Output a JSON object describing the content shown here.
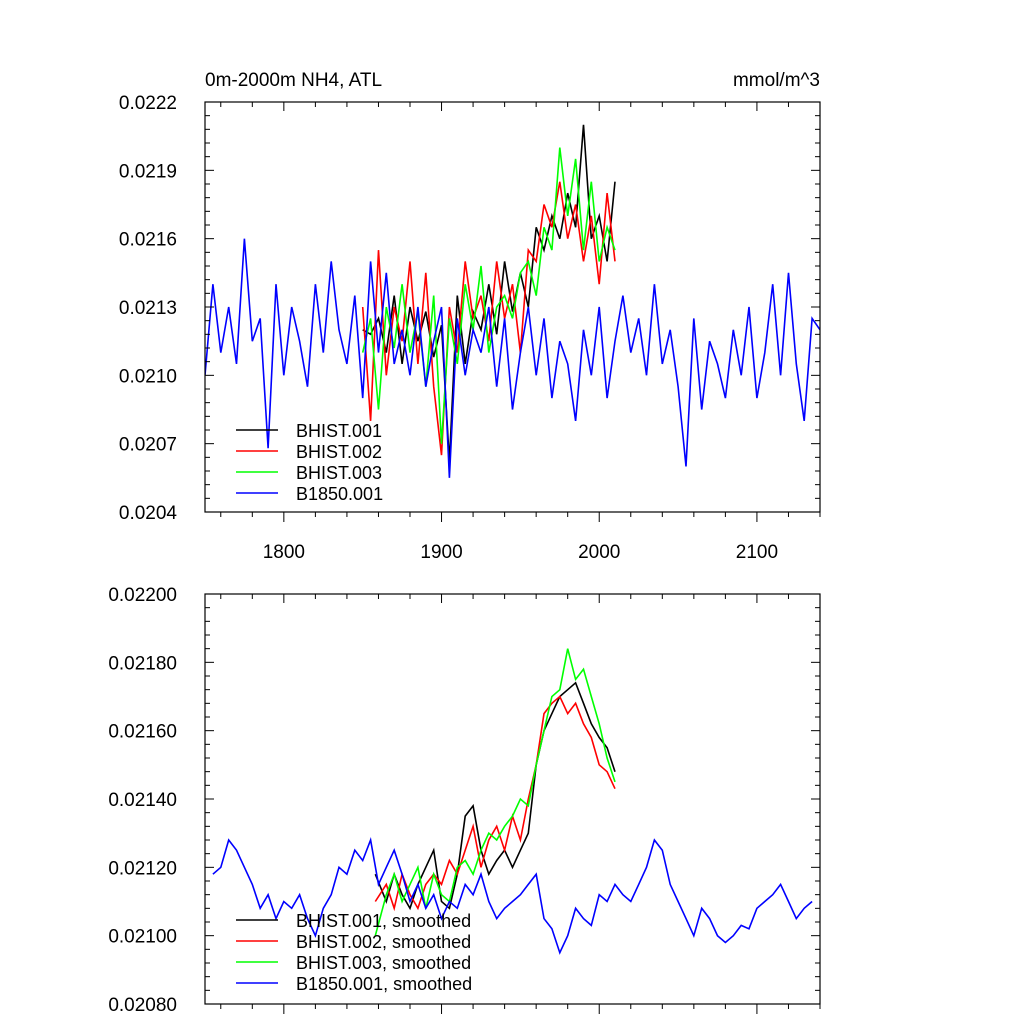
{
  "figure": {
    "title_left": "0m-2000m NH4, ATL",
    "title_right": "mmol/m^3"
  },
  "colors": {
    "BHIST.001": "#000000",
    "BHIST.002": "#ff0000",
    "BHIST.003": "#00ff00",
    "B1850.001": "#0000ff"
  },
  "chart_data": [
    {
      "type": "line",
      "title": "0m-2000m NH4, ATL",
      "units": "mmol/m^3",
      "xlim": [
        1750,
        2140
      ],
      "ylim": [
        0.0204,
        0.0222
      ],
      "xticks": [
        1800,
        1900,
        2000,
        2100
      ],
      "xtick_labels": [
        "1800",
        "1900",
        "2000",
        "2100"
      ],
      "yticks": [
        0.0204,
        0.0207,
        0.021,
        0.0213,
        0.0216,
        0.0219,
        0.0222
      ],
      "ytick_labels": [
        "0.0204",
        "0.0207",
        "0.0210",
        "0.0213",
        "0.0216",
        "0.0219",
        "0.0222"
      ],
      "legend_position": "bottom-left",
      "series": [
        {
          "name": "BHIST.001",
          "color": "#000000",
          "x": [
            1850,
            1855,
            1860,
            1865,
            1870,
            1875,
            1880,
            1885,
            1890,
            1895,
            1900,
            1905,
            1910,
            1915,
            1920,
            1925,
            1930,
            1935,
            1940,
            1945,
            1950,
            1955,
            1960,
            1965,
            1970,
            1975,
            1980,
            1985,
            1990,
            1995,
            2000,
            2005,
            2010
          ],
          "y": [
            0.0212,
            0.02118,
            0.02125,
            0.0211,
            0.02135,
            0.02105,
            0.0213,
            0.02115,
            0.02128,
            0.02108,
            0.02122,
            0.02062,
            0.02135,
            0.02105,
            0.02128,
            0.0212,
            0.0214,
            0.02118,
            0.0215,
            0.02128,
            0.02145,
            0.0213,
            0.02165,
            0.02155,
            0.0217,
            0.0216,
            0.0218,
            0.02165,
            0.0221,
            0.0216,
            0.0217,
            0.0215,
            0.02185
          ]
        },
        {
          "name": "BHIST.002",
          "color": "#ff0000",
          "x": [
            1850,
            1855,
            1860,
            1865,
            1870,
            1875,
            1880,
            1885,
            1890,
            1895,
            1900,
            1905,
            1910,
            1915,
            1920,
            1925,
            1930,
            1935,
            1940,
            1945,
            1950,
            1955,
            1960,
            1965,
            1970,
            1975,
            1980,
            1985,
            1990,
            1995,
            2000,
            2005,
            2010
          ],
          "y": [
            0.0213,
            0.0208,
            0.02155,
            0.021,
            0.0213,
            0.02115,
            0.0215,
            0.02105,
            0.02145,
            0.02095,
            0.02065,
            0.0213,
            0.0211,
            0.0215,
            0.02125,
            0.02135,
            0.02115,
            0.0215,
            0.02125,
            0.0214,
            0.0211,
            0.02155,
            0.0215,
            0.02175,
            0.02165,
            0.02185,
            0.0216,
            0.02175,
            0.0215,
            0.0217,
            0.0214,
            0.0218,
            0.0215
          ]
        },
        {
          "name": "BHIST.003",
          "color": "#00ff00",
          "x": [
            1850,
            1855,
            1860,
            1865,
            1870,
            1875,
            1880,
            1885,
            1890,
            1895,
            1900,
            1905,
            1910,
            1915,
            1920,
            1925,
            1930,
            1935,
            1940,
            1945,
            1950,
            1955,
            1960,
            1965,
            1970,
            1975,
            1980,
            1985,
            1990,
            1995,
            2000,
            2005,
            2010
          ],
          "y": [
            0.0211,
            0.02125,
            0.02085,
            0.0213,
            0.02112,
            0.0214,
            0.0211,
            0.02128,
            0.02095,
            0.02135,
            0.0207,
            0.02125,
            0.02105,
            0.0214,
            0.0212,
            0.02148,
            0.0211,
            0.0213,
            0.02135,
            0.02125,
            0.02145,
            0.0215,
            0.02135,
            0.02165,
            0.02155,
            0.022,
            0.0217,
            0.02195,
            0.02155,
            0.02185,
            0.0215,
            0.02165,
            0.02155
          ]
        },
        {
          "name": "B1850.001",
          "color": "#0000ff",
          "x": [
            1750,
            1755,
            1760,
            1765,
            1770,
            1775,
            1780,
            1785,
            1790,
            1795,
            1800,
            1805,
            1810,
            1815,
            1820,
            1825,
            1830,
            1835,
            1840,
            1845,
            1850,
            1855,
            1860,
            1865,
            1870,
            1875,
            1880,
            1885,
            1890,
            1895,
            1900,
            1905,
            1910,
            1915,
            1920,
            1925,
            1930,
            1935,
            1940,
            1945,
            1950,
            1955,
            1960,
            1965,
            1970,
            1975,
            1980,
            1985,
            1990,
            1995,
            2000,
            2005,
            2010,
            2015,
            2020,
            2025,
            2030,
            2035,
            2040,
            2045,
            2050,
            2055,
            2060,
            2065,
            2070,
            2075,
            2080,
            2085,
            2090,
            2095,
            2100,
            2105,
            2110,
            2115,
            2120,
            2125,
            2130,
            2135,
            2140
          ],
          "y": [
            0.021,
            0.0214,
            0.0211,
            0.0213,
            0.02105,
            0.0216,
            0.02115,
            0.02125,
            0.02068,
            0.0214,
            0.021,
            0.0213,
            0.02115,
            0.02095,
            0.0214,
            0.0211,
            0.0215,
            0.0212,
            0.02105,
            0.02135,
            0.0209,
            0.0215,
            0.0211,
            0.02145,
            0.02105,
            0.0212,
            0.021,
            0.0213,
            0.02095,
            0.02115,
            0.0213,
            0.02055,
            0.02125,
            0.021,
            0.0212,
            0.0211,
            0.0213,
            0.02095,
            0.02125,
            0.02085,
            0.0211,
            0.0213,
            0.021,
            0.02125,
            0.0209,
            0.02115,
            0.02105,
            0.0208,
            0.0212,
            0.021,
            0.0213,
            0.0209,
            0.02115,
            0.02135,
            0.0211,
            0.02125,
            0.021,
            0.0214,
            0.02105,
            0.0212,
            0.02095,
            0.0206,
            0.02125,
            0.02085,
            0.02115,
            0.02105,
            0.0209,
            0.0212,
            0.021,
            0.0213,
            0.0209,
            0.0211,
            0.0214,
            0.021,
            0.02145,
            0.02105,
            0.0208,
            0.02125,
            0.0212
          ]
        }
      ]
    },
    {
      "type": "line",
      "xlim": [
        1750,
        2140
      ],
      "ylim": [
        0.0208,
        0.022
      ],
      "xticks": [
        1800,
        1900,
        2000,
        2100
      ],
      "yticks": [
        0.0208,
        0.021,
        0.0212,
        0.0214,
        0.0216,
        0.0218,
        0.022
      ],
      "ytick_labels": [
        "0.02080",
        "0.02100",
        "0.02120",
        "0.02140",
        "0.02160",
        "0.02180",
        "0.02200"
      ],
      "legend_position": "bottom-left",
      "series": [
        {
          "name": "BHIST.001, smoothed",
          "color": "#000000",
          "x": [
            1858,
            1865,
            1870,
            1875,
            1880,
            1885,
            1890,
            1895,
            1900,
            1905,
            1910,
            1915,
            1920,
            1925,
            1930,
            1935,
            1940,
            1945,
            1950,
            1955,
            1960,
            1965,
            1970,
            1975,
            1980,
            1985,
            1990,
            1995,
            2000,
            2005,
            2010
          ],
          "y": [
            0.02118,
            0.0211,
            0.02118,
            0.02112,
            0.02108,
            0.02115,
            0.0212,
            0.02125,
            0.0211,
            0.02108,
            0.02118,
            0.02135,
            0.02138,
            0.02125,
            0.02118,
            0.02122,
            0.02125,
            0.0212,
            0.02125,
            0.0213,
            0.0215,
            0.0216,
            0.02165,
            0.0217,
            0.02172,
            0.02174,
            0.02168,
            0.02162,
            0.02158,
            0.02155,
            0.02148
          ]
        },
        {
          "name": "BHIST.002, smoothed",
          "color": "#ff0000",
          "x": [
            1858,
            1865,
            1870,
            1875,
            1880,
            1885,
            1890,
            1895,
            1900,
            1905,
            1910,
            1915,
            1920,
            1925,
            1930,
            1935,
            1940,
            1945,
            1950,
            1955,
            1960,
            1965,
            1970,
            1975,
            1980,
            1985,
            1990,
            1995,
            2000,
            2005,
            2010
          ],
          "y": [
            0.0211,
            0.02115,
            0.02108,
            0.02118,
            0.02112,
            0.02108,
            0.02115,
            0.02118,
            0.02115,
            0.02122,
            0.02118,
            0.02125,
            0.02132,
            0.0212,
            0.02128,
            0.02132,
            0.02125,
            0.02135,
            0.02128,
            0.0214,
            0.0215,
            0.02165,
            0.02168,
            0.0217,
            0.02165,
            0.02168,
            0.02162,
            0.02158,
            0.0215,
            0.02148,
            0.02143
          ]
        },
        {
          "name": "BHIST.003, smoothed",
          "color": "#00ff00",
          "x": [
            1858,
            1865,
            1870,
            1875,
            1880,
            1885,
            1890,
            1895,
            1900,
            1905,
            1910,
            1915,
            1920,
            1925,
            1930,
            1935,
            1940,
            1945,
            1950,
            1955,
            1960,
            1965,
            1970,
            1975,
            1980,
            1985,
            1990,
            1995,
            2000,
            2005,
            2010
          ],
          "y": [
            0.021,
            0.02112,
            0.02118,
            0.0211,
            0.02115,
            0.0212,
            0.02108,
            0.02118,
            0.02112,
            0.0211,
            0.0212,
            0.02122,
            0.02118,
            0.02125,
            0.0213,
            0.02128,
            0.02132,
            0.02135,
            0.0214,
            0.02138,
            0.0215,
            0.0216,
            0.0217,
            0.02172,
            0.02184,
            0.02175,
            0.02178,
            0.0217,
            0.02162,
            0.02152,
            0.02145
          ]
        },
        {
          "name": "B1850.001, smoothed",
          "color": "#0000ff",
          "x": [
            1755,
            1760,
            1765,
            1770,
            1775,
            1780,
            1785,
            1790,
            1795,
            1800,
            1805,
            1810,
            1815,
            1820,
            1825,
            1830,
            1835,
            1840,
            1845,
            1850,
            1855,
            1860,
            1865,
            1870,
            1875,
            1880,
            1885,
            1890,
            1895,
            1900,
            1905,
            1910,
            1915,
            1920,
            1925,
            1930,
            1935,
            1940,
            1945,
            1950,
            1955,
            1960,
            1965,
            1970,
            1975,
            1980,
            1985,
            1990,
            1995,
            2000,
            2005,
            2010,
            2015,
            2020,
            2025,
            2030,
            2035,
            2040,
            2045,
            2050,
            2055,
            2060,
            2065,
            2070,
            2075,
            2080,
            2085,
            2090,
            2095,
            2100,
            2105,
            2110,
            2115,
            2120,
            2125,
            2130,
            2135
          ],
          "y": [
            0.02118,
            0.0212,
            0.02128,
            0.02125,
            0.0212,
            0.02115,
            0.02108,
            0.02112,
            0.02105,
            0.0211,
            0.02108,
            0.02112,
            0.02105,
            0.021,
            0.02108,
            0.02112,
            0.0212,
            0.02118,
            0.02125,
            0.02122,
            0.02128,
            0.02115,
            0.0212,
            0.02125,
            0.02118,
            0.0211,
            0.02115,
            0.02108,
            0.02112,
            0.02105,
            0.0211,
            0.02108,
            0.02115,
            0.02112,
            0.02118,
            0.0211,
            0.02105,
            0.02108,
            0.0211,
            0.02112,
            0.02115,
            0.02118,
            0.02105,
            0.02102,
            0.02095,
            0.021,
            0.02108,
            0.02105,
            0.02103,
            0.02112,
            0.0211,
            0.02115,
            0.02112,
            0.0211,
            0.02115,
            0.0212,
            0.02128,
            0.02125,
            0.02115,
            0.0211,
            0.02105,
            0.021,
            0.02108,
            0.02105,
            0.021,
            0.02098,
            0.021,
            0.02103,
            0.02102,
            0.02108,
            0.0211,
            0.02112,
            0.02115,
            0.0211,
            0.02105,
            0.02108,
            0.0211
          ]
        }
      ]
    }
  ]
}
